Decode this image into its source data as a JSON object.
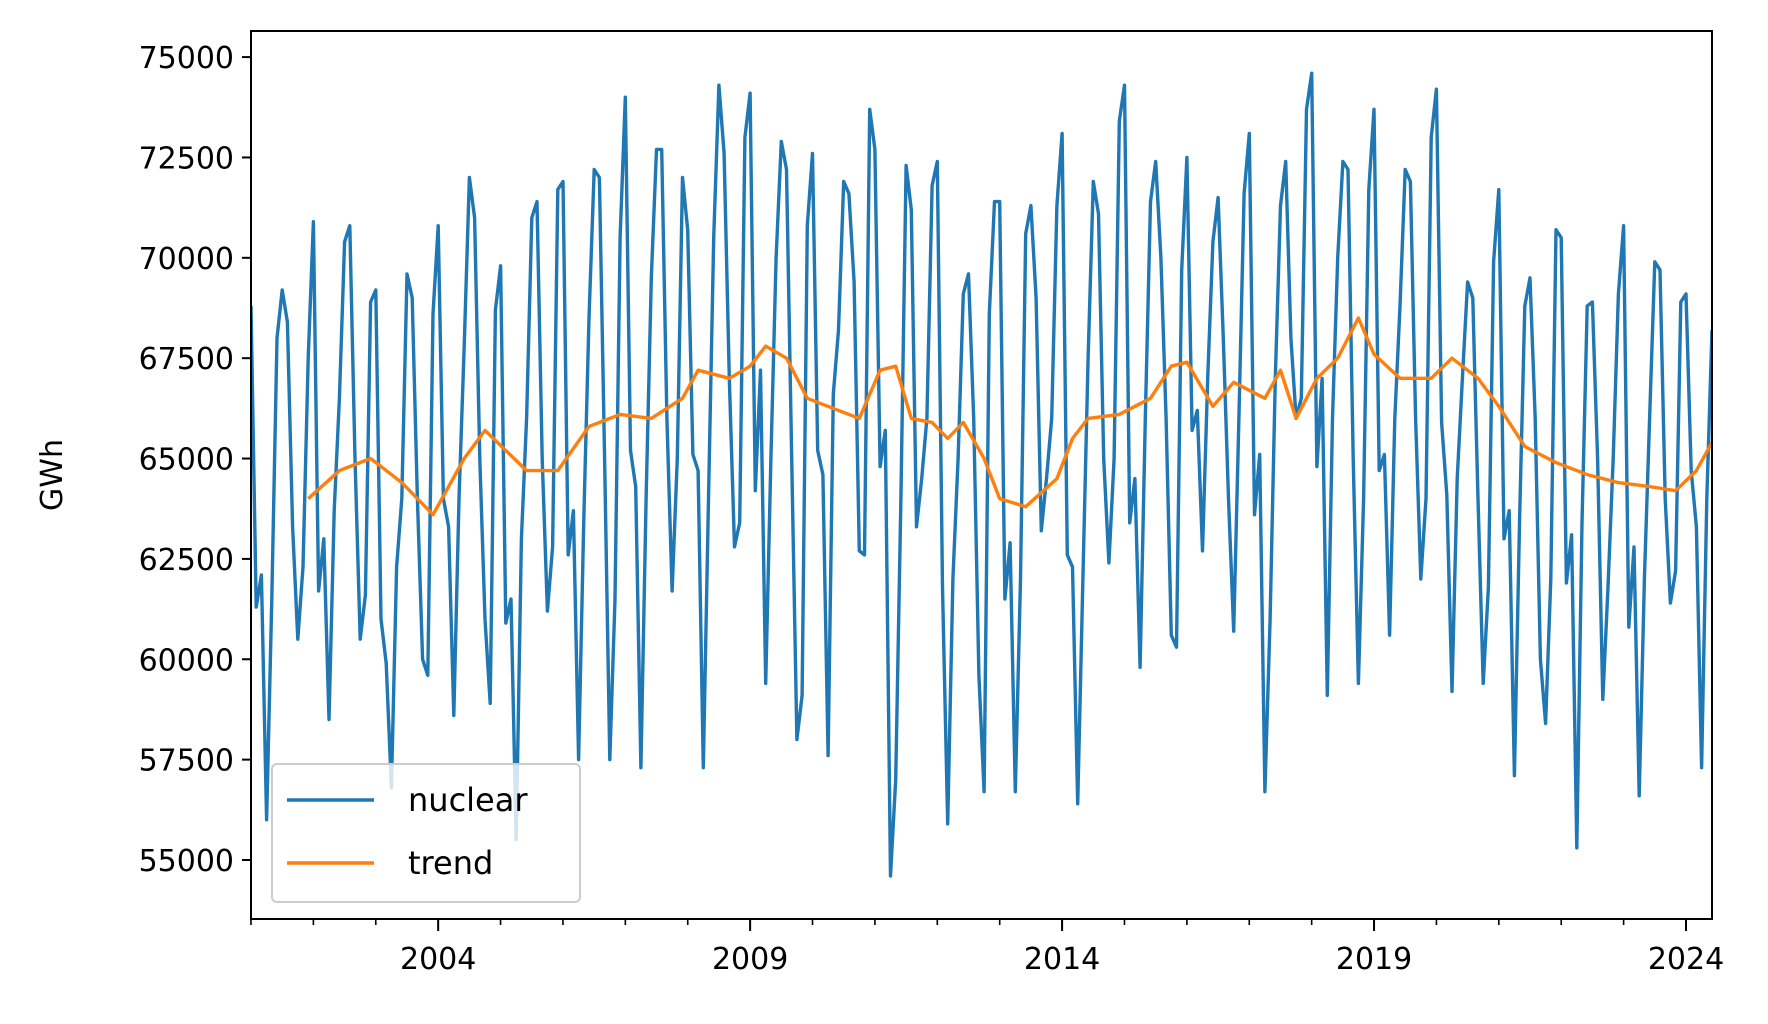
{
  "chart_data": {
    "type": "line",
    "title": "",
    "xlabel": "",
    "ylabel": "GWh",
    "xlim": [
      "2001-01",
      "2024-06"
    ],
    "ylim": [
      53530,
      75650
    ],
    "yticks": [
      55000,
      57500,
      60000,
      62500,
      65000,
      67500,
      70000,
      72500,
      75000
    ],
    "xticks": [
      "2004",
      "2009",
      "2014",
      "2019",
      "2024"
    ],
    "grid": false,
    "legend": {
      "placement": "lower-left",
      "entries": [
        "nuclear",
        "trend"
      ]
    },
    "colors": {
      "nuclear": "#1f77b4",
      "trend": "#ff7f0e"
    },
    "series": [
      {
        "name": "nuclear",
        "frequency": "monthly",
        "by_year": [
          {
            "year": 2001,
            "values": [
              68800,
              61300,
              62100,
              56000,
              61500,
              68000,
              69200,
              68400,
              63300,
              60500,
              62300,
              67500
            ]
          },
          {
            "year": 2002,
            "values": [
              70900,
              61700,
              63000,
              58500,
              63700,
              66500,
              70400,
              70800,
              65000,
              60500,
              61600,
              68900
            ]
          },
          {
            "year": 2003,
            "values": [
              69200,
              61000,
              59900,
              56800,
              62300,
              64000,
              69600,
              69000,
              64000,
              60000,
              59600,
              68600
            ]
          },
          {
            "year": 2004,
            "values": [
              70800,
              64000,
              63300,
              58600,
              64000,
              67800,
              72000,
              71000,
              65000,
              61000,
              58900,
              68700
            ]
          },
          {
            "year": 2005,
            "values": [
              69800,
              60900,
              61500,
              55500,
              63000,
              66000,
              71000,
              71400,
              65000,
              61200,
              62800,
              71700
            ]
          },
          {
            "year": 2006,
            "values": [
              71900,
              62600,
              63700,
              57500,
              63500,
              68500,
              72200,
              72000,
              65000,
              57500,
              61500,
              70500
            ]
          },
          {
            "year": 2007,
            "values": [
              74000,
              65200,
              64300,
              57300,
              64000,
              69500,
              72700,
              72700,
              66000,
              61700,
              65000,
              72000
            ]
          },
          {
            "year": 2008,
            "values": [
              70700,
              65100,
              64700,
              57300,
              64000,
              70500,
              74300,
              72600,
              67000,
              62800,
              63400,
              73000
            ]
          },
          {
            "year": 2009,
            "values": [
              74100,
              64200,
              67200,
              59400,
              65000,
              70000,
              72900,
              72200,
              65000,
              58000,
              59100,
              70800
            ]
          },
          {
            "year": 2010,
            "values": [
              72600,
              65200,
              64600,
              57600,
              66600,
              68200,
              71900,
              71600,
              69400,
              62700,
              62600,
              73700
            ]
          },
          {
            "year": 2011,
            "values": [
              72700,
              64800,
              65700,
              54600,
              57000,
              64000,
              72300,
              71200,
              63300,
              64500,
              66000,
              71800
            ]
          },
          {
            "year": 2012,
            "values": [
              72400,
              61800,
              55900,
              62000,
              65000,
              69100,
              69600,
              66000,
              59600,
              56700,
              68600,
              71400
            ]
          },
          {
            "year": 2013,
            "values": [
              71400,
              61500,
              62900,
              56700,
              62000,
              70600,
              71300,
              69000,
              63200,
              64500,
              66000,
              71300
            ]
          },
          {
            "year": 2014,
            "values": [
              73100,
              62600,
              62300,
              56400,
              62000,
              67500,
              71900,
              71100,
              65000,
              62400,
              65000,
              73400
            ]
          },
          {
            "year": 2015,
            "values": [
              74300,
              63400,
              64500,
              59800,
              66000,
              71400,
              72400,
              70000,
              66000,
              60600,
              60300,
              69700
            ]
          },
          {
            "year": 2016,
            "values": [
              72500,
              65700,
              66200,
              62700,
              67000,
              70400,
              71500,
              68000,
              64000,
              60700,
              66000,
              71600
            ]
          },
          {
            "year": 2017,
            "values": [
              73100,
              63600,
              65100,
              56700,
              61000,
              67000,
              71300,
              72400,
              68000,
              66000,
              66500,
              73700
            ]
          },
          {
            "year": 2018,
            "values": [
              74600,
              64800,
              67000,
              59100,
              66000,
              70000,
              72400,
              72200,
              65000,
              59400,
              64000,
              71700
            ]
          },
          {
            "year": 2019,
            "values": [
              73700,
              64700,
              65100,
              60600,
              66000,
              68800,
              72200,
              71900,
              66000,
              62000,
              64000,
              73000
            ]
          },
          {
            "year": 2020,
            "values": [
              74200,
              65900,
              64100,
              59200,
              64500,
              67000,
              69400,
              69000,
              64000,
              59400,
              61800,
              69900
            ]
          },
          {
            "year": 2021,
            "values": [
              71700,
              63000,
              63700,
              57100,
              63500,
              68800,
              69500,
              66000,
              60000,
              58400,
              62000,
              70700
            ]
          },
          {
            "year": 2022,
            "values": [
              70500,
              61900,
              63100,
              55300,
              63400,
              68800,
              68900,
              65000,
              59000,
              61800,
              65000,
              69100
            ]
          },
          {
            "year": 2023,
            "values": [
              70800,
              60800,
              62800,
              56600,
              62000,
              66000,
              69900,
              69700,
              64000,
              61400,
              62200,
              68900
            ]
          },
          {
            "year": 2024,
            "values": [
              69100,
              64700,
              63300,
              57300,
              64000,
              68200
            ]
          }
        ]
      },
      {
        "name": "trend",
        "points": [
          [
            "2001-12",
            64000
          ],
          [
            "2002-06",
            64700
          ],
          [
            "2002-12",
            65000
          ],
          [
            "2003-06",
            64400
          ],
          [
            "2003-12",
            63600
          ],
          [
            "2004-06",
            65000
          ],
          [
            "2004-10",
            65700
          ],
          [
            "2005-06",
            64700
          ],
          [
            "2005-12",
            64700
          ],
          [
            "2006-06",
            65800
          ],
          [
            "2006-12",
            66100
          ],
          [
            "2007-06",
            66000
          ],
          [
            "2007-12",
            66500
          ],
          [
            "2008-03",
            67200
          ],
          [
            "2008-09",
            67000
          ],
          [
            "2009-01",
            67300
          ],
          [
            "2009-04",
            67800
          ],
          [
            "2009-08",
            67500
          ],
          [
            "2009-12",
            66500
          ],
          [
            "2010-06",
            66200
          ],
          [
            "2010-10",
            66000
          ],
          [
            "2011-02",
            67200
          ],
          [
            "2011-05",
            67300
          ],
          [
            "2011-08",
            66000
          ],
          [
            "2011-12",
            65900
          ],
          [
            "2012-03",
            65500
          ],
          [
            "2012-06",
            65900
          ],
          [
            "2012-10",
            65000
          ],
          [
            "2013-01",
            64000
          ],
          [
            "2013-06",
            63800
          ],
          [
            "2013-12",
            64500
          ],
          [
            "2014-03",
            65500
          ],
          [
            "2014-06",
            66000
          ],
          [
            "2014-12",
            66100
          ],
          [
            "2015-06",
            66500
          ],
          [
            "2015-10",
            67300
          ],
          [
            "2016-01",
            67400
          ],
          [
            "2016-06",
            66300
          ],
          [
            "2016-10",
            66900
          ],
          [
            "2017-04",
            66500
          ],
          [
            "2017-07",
            67200
          ],
          [
            "2017-10",
            66000
          ],
          [
            "2018-02",
            67000
          ],
          [
            "2018-06",
            67500
          ],
          [
            "2018-10",
            68500
          ],
          [
            "2019-01",
            67600
          ],
          [
            "2019-06",
            67000
          ],
          [
            "2019-12",
            67000
          ],
          [
            "2020-04",
            67500
          ],
          [
            "2020-09",
            67000
          ],
          [
            "2021-01",
            66300
          ],
          [
            "2021-06",
            65300
          ],
          [
            "2021-12",
            64900
          ],
          [
            "2022-06",
            64600
          ],
          [
            "2022-12",
            64400
          ],
          [
            "2023-06",
            64300
          ],
          [
            "2023-11",
            64200
          ],
          [
            "2024-03",
            64700
          ],
          [
            "2024-06",
            65400
          ]
        ]
      }
    ]
  }
}
